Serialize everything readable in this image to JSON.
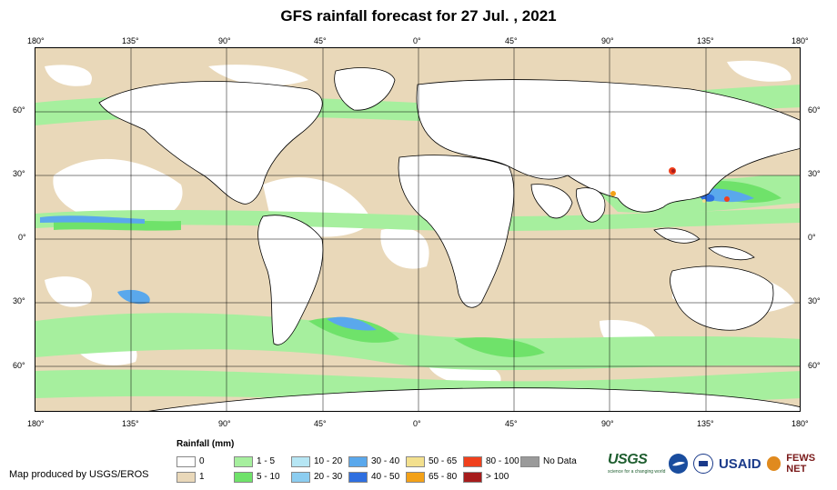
{
  "title": "GFS rainfall forecast for 27 Jul. , 2021",
  "axes": {
    "longitude_labels": [
      "180°",
      "135°",
      "90°",
      "45°",
      "0°",
      "45°",
      "90°",
      "135°",
      "180°"
    ],
    "latitude_labels": [
      "60°",
      "30°",
      "0°",
      "30°",
      "60°"
    ]
  },
  "legend": {
    "title": "Rainfall (mm)",
    "items": [
      {
        "label": "0",
        "color": "#ffffff"
      },
      {
        "label": "1 - 5",
        "color": "#a6ef9e"
      },
      {
        "label": "10 - 20",
        "color": "#b6e6f4"
      },
      {
        "label": "30 - 40",
        "color": "#5aa8ec"
      },
      {
        "label": "50 - 65",
        "color": "#f3e08e"
      },
      {
        "label": "80 - 100",
        "color": "#f0401c"
      },
      {
        "label": "No Data",
        "color": "#9a9a9a"
      },
      {
        "label": "1",
        "color": "#e9d8b9"
      },
      {
        "label": "5 - 10",
        "color": "#6fe26a"
      },
      {
        "label": "20 - 30",
        "color": "#8ccdf0"
      },
      {
        "label": "40 - 50",
        "color": "#2f6fe0"
      },
      {
        "label": "65 - 80",
        "color": "#f3a118"
      },
      {
        "label": "> 100",
        "color": "#a61c1c"
      }
    ]
  },
  "credit": "Map produced by USGS/EROS",
  "logos": {
    "usgs": "USGS",
    "usgs_tagline": "science for a changing world",
    "noaa": "NOAA",
    "usaid": "USAID",
    "fews": "FEWS NET"
  }
}
